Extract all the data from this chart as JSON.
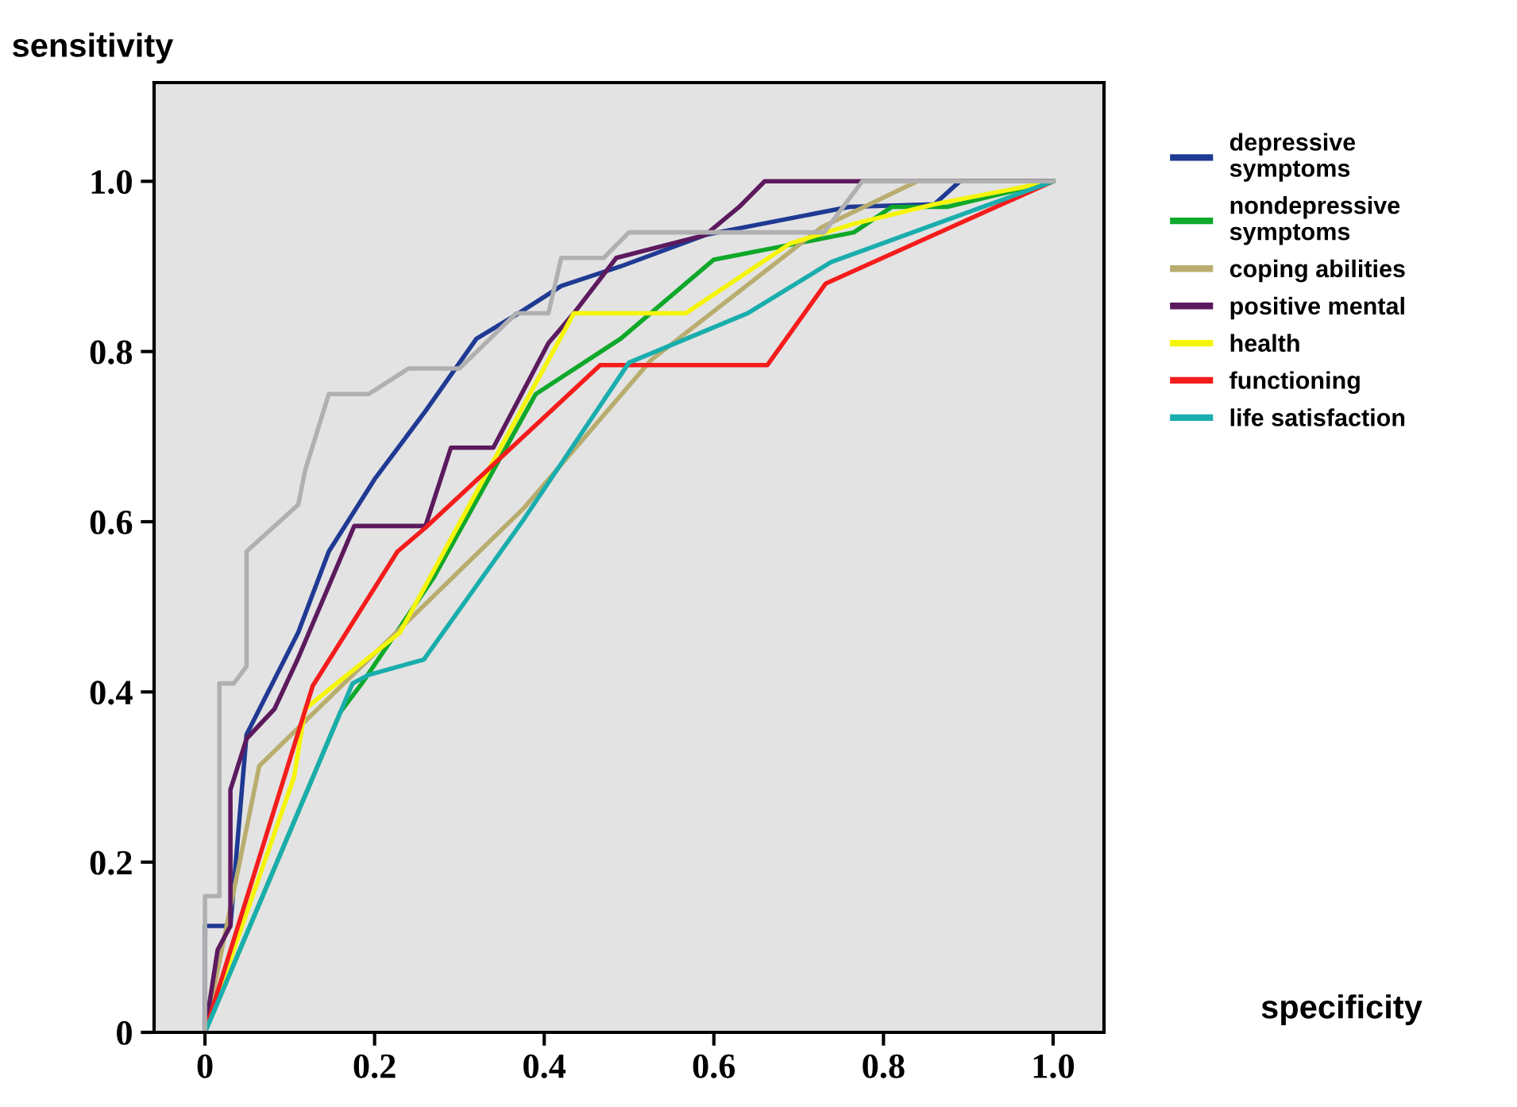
{
  "chart_data": {
    "type": "line",
    "xlabel": "specificity",
    "ylabel": "sensitivity",
    "xlim": [
      -0.06,
      1.06
    ],
    "ylim": [
      0,
      1.116
    ],
    "xticks": [
      {
        "value": 0,
        "label": "0"
      },
      0.2,
      0.4,
      0.6,
      0.8,
      {
        "value": 1,
        "label": "1.0"
      }
    ],
    "yticks": [
      {
        "value": 0,
        "label": "0"
      },
      0.2,
      0.4,
      0.6,
      0.8,
      {
        "value": 1,
        "label": "1.0"
      }
    ],
    "grid": false,
    "legend": "right",
    "marker": "none",
    "line_style": "solid",
    "series": [
      {
        "name": "depressive\nsymptoms",
        "color": "#1f3a93",
        "x": [
          0,
          0,
          0.03,
          0.049,
          0.11,
          0.146,
          0.2,
          0.26,
          0.32,
          0.37,
          0.42,
          0.49,
          0.59,
          0.76,
          0.86,
          0.89,
          1
        ],
        "values": [
          0,
          0.125,
          0.125,
          0.35,
          0.47,
          0.565,
          0.65,
          0.73,
          0.815,
          0.845,
          0.877,
          0.9,
          0.937,
          0.97,
          0.973,
          1,
          1
        ]
      },
      {
        "name": "nondepressive\nsymptoms",
        "color": "#0fa82a",
        "x": [
          0,
          0.16,
          0.185,
          0.27,
          0.39,
          0.49,
          0.6,
          0.765,
          0.81,
          0.875,
          1
        ],
        "values": [
          0,
          0.377,
          0.41,
          0.535,
          0.75,
          0.815,
          0.908,
          0.94,
          0.97,
          0.97,
          1
        ]
      },
      {
        "name": "coping abilities",
        "color": "#b8ad6e",
        "x": [
          0,
          0.064,
          0.376,
          0.526,
          0.727,
          0.84,
          1
        ],
        "values": [
          0,
          0.313,
          0.616,
          0.79,
          0.946,
          1,
          1
        ]
      },
      {
        "name": "positive mental",
        "color": "#5c1a5e",
        "x": [
          0,
          0.015,
          0.03,
          0.03,
          0.049,
          0.082,
          0.11,
          0.176,
          0.26,
          0.29,
          0.34,
          0.405,
          0.435,
          0.485,
          0.59,
          0.63,
          0.66,
          1
        ],
        "values": [
          0,
          0.097,
          0.125,
          0.285,
          0.345,
          0.38,
          0.44,
          0.595,
          0.595,
          0.687,
          0.687,
          0.81,
          0.845,
          0.91,
          0.937,
          0.97,
          1,
          1
        ]
      },
      {
        "name": "health",
        "color": "#f5f50a",
        "x": [
          0,
          0.105,
          0.118,
          0.23,
          0.435,
          0.567,
          0.69,
          0.765,
          0.86,
          1
        ],
        "values": [
          0,
          0.3,
          0.38,
          0.47,
          0.845,
          0.845,
          0.927,
          0.95,
          0.973,
          1
        ]
      },
      {
        "name": "functioning",
        "color": "#f51c1c",
        "x": [
          0,
          0.127,
          0.227,
          0.26,
          0.466,
          0.663,
          0.732,
          1
        ],
        "values": [
          0,
          0.407,
          0.565,
          0.593,
          0.784,
          0.784,
          0.88,
          1
        ]
      },
      {
        "name": "life satisfaction",
        "color": "#1aadad",
        "x": [
          0,
          0.174,
          0.193,
          0.258,
          0.376,
          0.5,
          0.64,
          0.738,
          1
        ],
        "values": [
          0,
          0.41,
          0.42,
          0.438,
          0.603,
          0.787,
          0.845,
          0.905,
          1
        ]
      },
      {
        "color": "#b0b0b0",
        "x": [
          0,
          0,
          0.017,
          0.017,
          0.034,
          0.049,
          0.049,
          0.11,
          0.118,
          0.146,
          0.193,
          0.24,
          0.3,
          0.367,
          0.405,
          0.42,
          0.47,
          0.5,
          0.73,
          0.775,
          1
        ],
        "values": [
          0,
          0.16,
          0.16,
          0.41,
          0.41,
          0.43,
          0.565,
          0.62,
          0.66,
          0.75,
          0.75,
          0.78,
          0.78,
          0.845,
          0.845,
          0.91,
          0.91,
          0.94,
          0.94,
          1,
          1
        ]
      }
    ]
  }
}
